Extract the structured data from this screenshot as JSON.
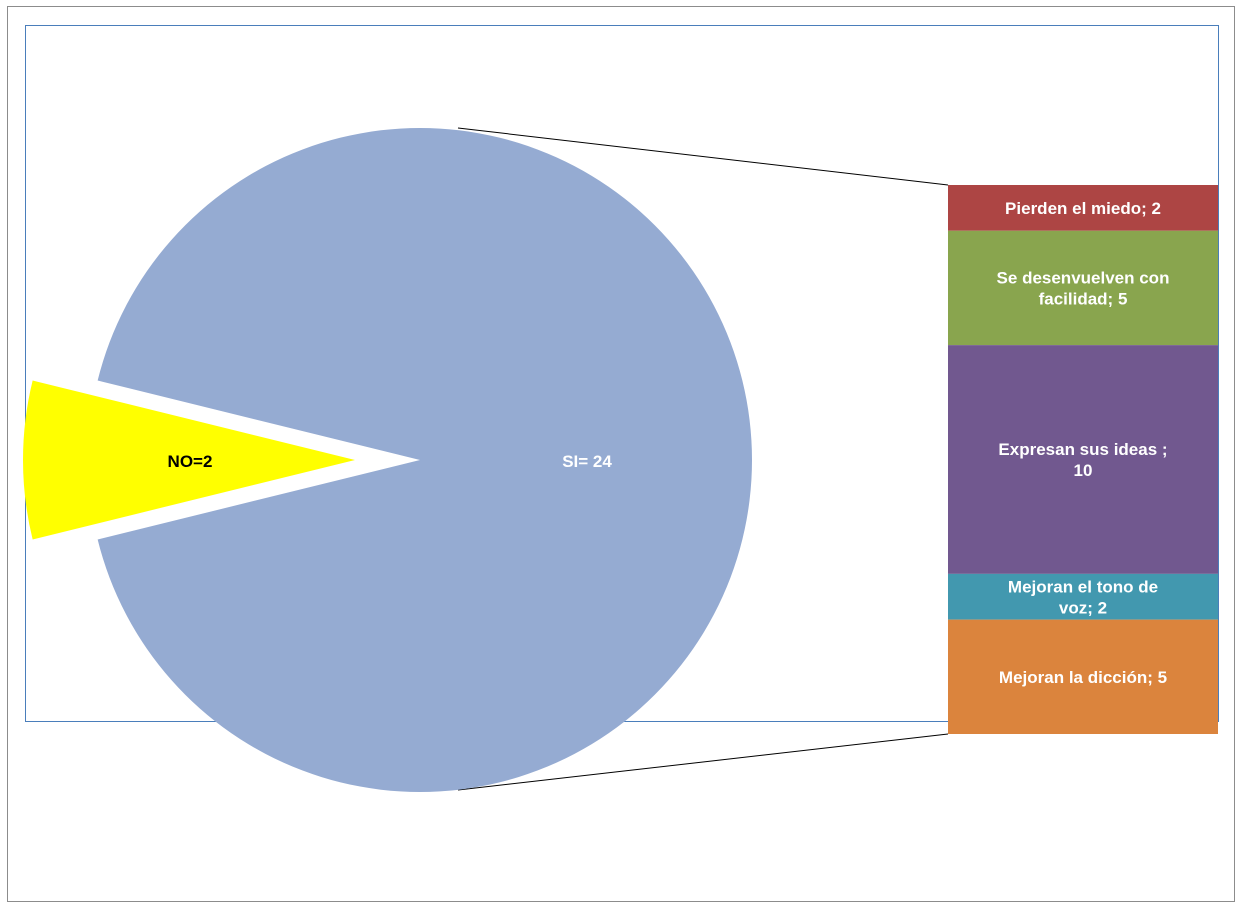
{
  "chart_data": {
    "type": "pie",
    "subtype": "bar-of-pie",
    "slices": [
      {
        "label": "NO=2",
        "value": 2,
        "color": "#ffff00",
        "label_color": "#000000",
        "exploded": true
      },
      {
        "label": "SI= 24",
        "value": 24,
        "color": "#95abd2",
        "label_color": "#ffffff",
        "exploded": false
      }
    ],
    "breakdown": {
      "of": "SI= 24",
      "items": [
        {
          "label_line1": "Pierden el miedo; 2",
          "label_line2": "",
          "value": 2,
          "color": "#ad4544"
        },
        {
          "label_line1": "Se desenvuelven con",
          "label_line2": "facilidad; 5",
          "value": 5,
          "color": "#89a54e"
        },
        {
          "label_line1": "Expresan sus ideas ;",
          "label_line2": "10",
          "value": 10,
          "color": "#71588f"
        },
        {
          "label_line1": "Mejoran el tono de",
          "label_line2": "voz; 2",
          "value": 2,
          "color": "#4298af"
        },
        {
          "label_line1": "Mejoran la dicción; 5",
          "label_line2": "",
          "value": 5,
          "color": "#db843d"
        }
      ]
    },
    "border_color": "#4a7ebb",
    "connector_color": "#000000"
  }
}
